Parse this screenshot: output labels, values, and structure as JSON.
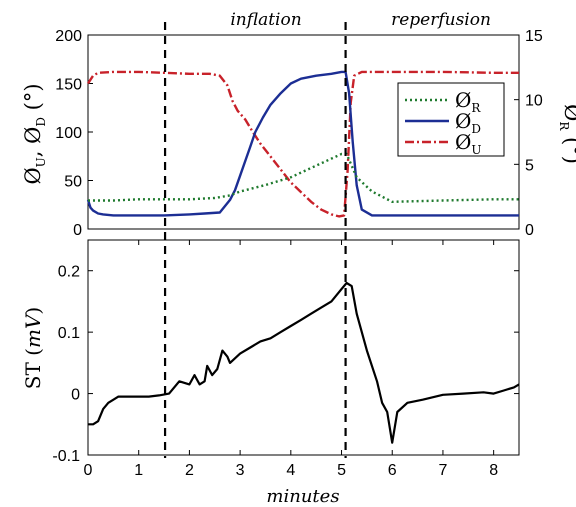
{
  "chart_data": [
    {
      "type": "line",
      "annotations": [
        {
          "text": "inflation",
          "x": 3.0
        },
        {
          "text": "reperfusion",
          "x": 6.8
        }
      ],
      "ylabel": "Ø_U, Ø_D (°)",
      "ylabel_right": "Ø_R (°)",
      "xlim": [
        0,
        8.5
      ],
      "ylim": [
        0,
        200
      ],
      "ylim_right": [
        0,
        15
      ],
      "yticks": [
        "0",
        "50",
        "100",
        "150",
        "200"
      ],
      "yticks_right": [
        "0",
        "5",
        "10",
        "15"
      ],
      "event_lines_minutes": [
        1.52,
        5.08
      ],
      "legend": {
        "position": "right",
        "entries": [
          {
            "label": "Ø_R",
            "base": "Ø",
            "sub": "R",
            "color": "#1f7a2e",
            "style": "dotted"
          },
          {
            "label": "Ø_D",
            "base": "Ø",
            "sub": "D",
            "color": "#1c2e94",
            "style": "solid"
          },
          {
            "label": "Ø_U",
            "base": "Ø",
            "sub": "U",
            "color": "#c8222a",
            "style": "dashdot"
          }
        ]
      },
      "series": [
        {
          "name": "Ø_U",
          "axis": "left",
          "color": "#c8222a",
          "style": "dashdot",
          "x": [
            0,
            0.1,
            0.2,
            0.5,
            1.0,
            1.5,
            2.0,
            2.4,
            2.6,
            2.75,
            2.85,
            2.95,
            3.1,
            3.25,
            3.4,
            3.55,
            3.7,
            3.85,
            4.0,
            4.2,
            4.4,
            4.6,
            4.8,
            4.95,
            5.05,
            5.12,
            5.18,
            5.25,
            5.4,
            6.0,
            7.0,
            8.0,
            8.5
          ],
          "y": [
            150,
            158,
            161,
            162,
            162,
            161,
            160,
            160,
            158,
            148,
            132,
            122,
            113,
            100,
            88,
            78,
            68,
            58,
            48,
            38,
            28,
            20,
            15,
            13,
            14,
            60,
            130,
            158,
            162,
            162,
            162,
            161,
            161
          ]
        },
        {
          "name": "Ø_D",
          "axis": "left",
          "color": "#1c2e94",
          "style": "solid",
          "x": [
            0,
            0.05,
            0.1,
            0.2,
            0.3,
            0.5,
            1.0,
            1.5,
            2.0,
            2.3,
            2.6,
            2.8,
            2.9,
            3.0,
            3.1,
            3.2,
            3.3,
            3.45,
            3.6,
            3.8,
            4.0,
            4.2,
            4.5,
            4.8,
            5.0,
            5.08,
            5.15,
            5.22,
            5.3,
            5.4,
            5.6,
            6.0,
            7.0,
            8.0,
            8.5
          ],
          "y": [
            30,
            22,
            19,
            16,
            15,
            14,
            14,
            14,
            15,
            16,
            17,
            30,
            40,
            55,
            70,
            85,
            100,
            115,
            128,
            140,
            150,
            155,
            158,
            160,
            162,
            162,
            140,
            90,
            45,
            20,
            14,
            14,
            14,
            14,
            14
          ]
        },
        {
          "name": "Ø_R",
          "axis": "right",
          "color": "#1f7a2e",
          "style": "dotted",
          "x": [
            0,
            0.5,
            1.0,
            1.5,
            2.0,
            2.5,
            2.8,
            3.0,
            3.5,
            4.0,
            4.5,
            5.0,
            5.1,
            5.3,
            5.6,
            6.0,
            7.0,
            8.0,
            8.5
          ],
          "y": [
            2.2,
            2.2,
            2.3,
            2.3,
            2.3,
            2.4,
            2.6,
            2.9,
            3.4,
            4.0,
            4.9,
            5.8,
            5.8,
            4.0,
            2.9,
            2.1,
            2.2,
            2.3,
            2.3
          ]
        }
      ]
    },
    {
      "type": "line",
      "xlabel": "minutes",
      "ylabel": "ST (mV)",
      "xlim": [
        0,
        8.5
      ],
      "ylim": [
        -0.1,
        0.25
      ],
      "xticks": [
        "0",
        "1",
        "2",
        "3",
        "4",
        "5",
        "6",
        "7",
        "8"
      ],
      "yticks": [
        "-0.1",
        "0",
        "0.1",
        "0.2"
      ],
      "event_lines_minutes": [
        1.52,
        5.08
      ],
      "series": [
        {
          "name": "ST",
          "color": "#000000",
          "style": "solid",
          "x": [
            0,
            0.1,
            0.2,
            0.3,
            0.4,
            0.5,
            0.6,
            0.8,
            1.0,
            1.2,
            1.4,
            1.6,
            1.8,
            2.0,
            2.1,
            2.2,
            2.3,
            2.35,
            2.45,
            2.55,
            2.65,
            2.75,
            2.8,
            3.0,
            3.2,
            3.4,
            3.6,
            3.8,
            4.0,
            4.2,
            4.4,
            4.6,
            4.8,
            5.0,
            5.1,
            5.2,
            5.3,
            5.5,
            5.7,
            5.8,
            5.9,
            6.0,
            6.1,
            6.3,
            6.6,
            7.0,
            7.4,
            7.8,
            8.0,
            8.2,
            8.4,
            8.5
          ],
          "y": [
            -0.05,
            -0.05,
            -0.045,
            -0.025,
            -0.015,
            -0.01,
            -0.005,
            -0.005,
            -0.005,
            -0.005,
            -0.003,
            0.0,
            0.02,
            0.015,
            0.03,
            0.015,
            0.02,
            0.045,
            0.03,
            0.04,
            0.07,
            0.06,
            0.05,
            0.065,
            0.075,
            0.085,
            0.09,
            0.1,
            0.11,
            0.12,
            0.13,
            0.14,
            0.15,
            0.17,
            0.18,
            0.175,
            0.13,
            0.07,
            0.02,
            -0.015,
            -0.03,
            -0.08,
            -0.03,
            -0.015,
            -0.01,
            -0.002,
            0.0,
            0.002,
            0.0,
            0.005,
            0.01,
            0.015
          ]
        }
      ]
    }
  ]
}
